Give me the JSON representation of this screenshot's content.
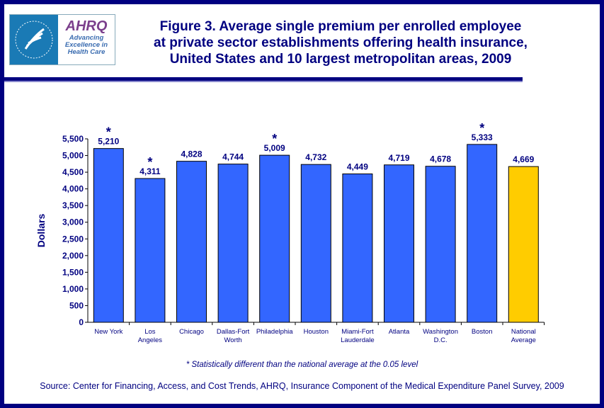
{
  "logo": {
    "org": "AHRQ",
    "tagline": "Advancing Excellence in Health Care",
    "seal": "Department of Health & Human Services USA"
  },
  "title": [
    "Figure 3. Average single premium per enrolled employee",
    "at private sector establishments offering health insurance,",
    "United States and 10 largest metropolitan areas, 2009"
  ],
  "footnote": "* Statistically different than the national average at the 0.05 level",
  "source": "Source: Center for Financing, Access, and Cost Trends, AHRQ, Insurance Component of the Medical Expenditure Panel Survey, 2009",
  "chart_data": {
    "type": "bar",
    "ylabel": "Dollars",
    "xlabel": "",
    "ylim": [
      0,
      5500
    ],
    "yticks": [
      0,
      500,
      1000,
      1500,
      2000,
      2500,
      3000,
      3500,
      4000,
      4500,
      5000,
      5500
    ],
    "categories": [
      [
        "New York"
      ],
      [
        "Los",
        "Angeles"
      ],
      [
        "Chicago"
      ],
      [
        "Dallas-Fort",
        "Worth"
      ],
      [
        "Philadelphia"
      ],
      [
        "Houston"
      ],
      [
        "Miami-Fort",
        "Lauderdale"
      ],
      [
        "Atlanta"
      ],
      [
        "Washington",
        "D.C."
      ],
      [
        "Boston"
      ],
      [
        "National",
        "Average"
      ]
    ],
    "values": [
      5210,
      4311,
      4828,
      4744,
      5009,
      4732,
      4449,
      4719,
      4678,
      5333,
      4669
    ],
    "significant": [
      true,
      true,
      false,
      false,
      true,
      false,
      false,
      false,
      false,
      true,
      false
    ],
    "colors": {
      "bar": "#3366FF",
      "highlight": "#FFCC00",
      "text": "#000080"
    },
    "grid": false,
    "legend": "none"
  }
}
